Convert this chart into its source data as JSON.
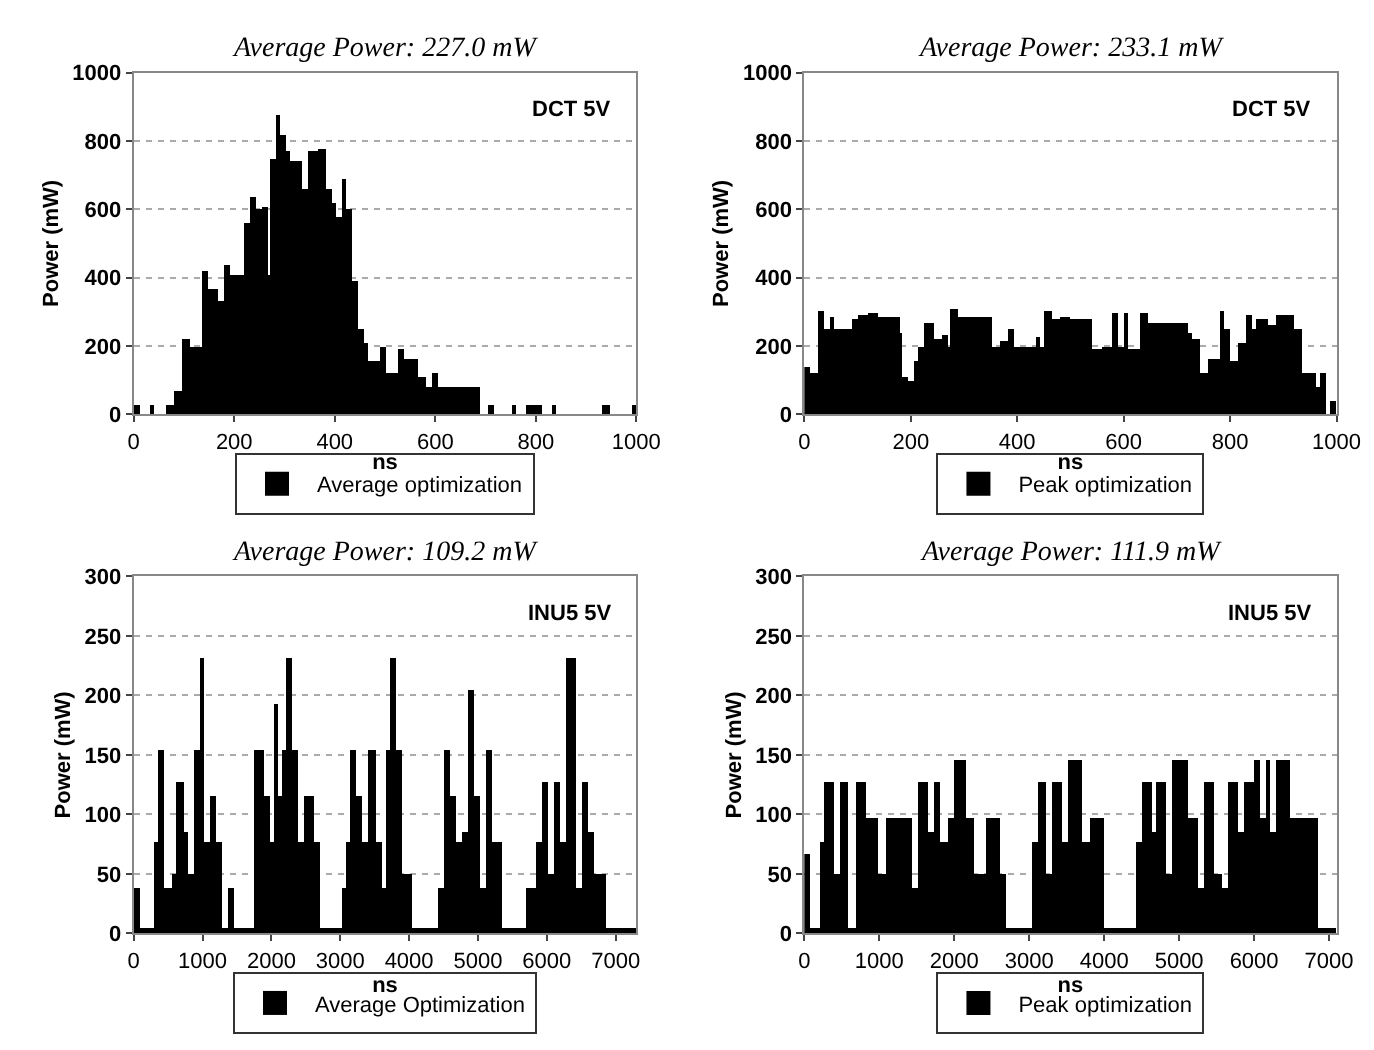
{
  "chart_data": [
    {
      "type": "histogram",
      "title": "Average Power: 227.0 mW",
      "xlabel": "ns",
      "ylabel": "Power (mW)",
      "annotations": [
        "DCT 5V"
      ],
      "xlim": [
        0,
        1000
      ],
      "ylim": [
        0,
        1000
      ],
      "xticks": [
        0,
        200,
        400,
        600,
        800,
        1000
      ],
      "yticks": [
        0,
        200,
        400,
        600,
        800,
        1000
      ],
      "grid": "y",
      "legend": "bottom",
      "bins": [
        0,
        10,
        30,
        40,
        65,
        80,
        97,
        110,
        136,
        147,
        167,
        179,
        189,
        220,
        230,
        242,
        255,
        265,
        272,
        282,
        291,
        302,
        312,
        335,
        348,
        365,
        381,
        394,
        401,
        414,
        423,
        434,
        444,
        458,
        467,
        489,
        500,
        524,
        536,
        563,
        579,
        593,
        606,
        688,
        705,
        718,
        751,
        760,
        778,
        791,
        810,
        831,
        840,
        930,
        945,
        990,
        1000
      ],
      "series": [
        {
          "name": "Average optimization",
          "color": "#000000",
          "values": [
            30,
            0,
            30,
            0,
            30,
            70,
            220,
            200,
            420,
            370,
            330,
            440,
            410,
            560,
            640,
            600,
            610,
            410,
            750,
            880,
            820,
            770,
            740,
            660,
            770,
            780,
            660,
            620,
            580,
            690,
            600,
            390,
            250,
            210,
            160,
            200,
            120,
            190,
            165,
            110,
            80,
            120,
            80,
            0,
            30,
            0,
            30,
            0,
            30,
            30,
            0,
            30,
            0,
            30,
            0,
            30
          ]
        }
      ]
    },
    {
      "type": "histogram",
      "title": "Average Power: 233.1 mW",
      "xlabel": "ns",
      "ylabel": "Power (mW)",
      "annotations": [
        "DCT 5V"
      ],
      "xlim": [
        0,
        1000
      ],
      "ylim": [
        0,
        1000
      ],
      "xticks": [
        0,
        200,
        400,
        600,
        800,
        1000
      ],
      "yticks": [
        0,
        200,
        400,
        600,
        800,
        1000
      ],
      "grid": "y",
      "legend": "bottom",
      "bins": [
        0,
        12,
        25,
        38,
        50,
        58,
        90,
        100,
        120,
        140,
        180,
        185,
        195,
        210,
        215,
        225,
        245,
        260,
        270,
        275,
        290,
        355,
        370,
        385,
        395,
        435,
        445,
        450,
        465,
        480,
        500,
        540,
        560,
        580,
        590,
        600,
        610,
        630,
        645,
        720,
        730,
        745,
        760,
        780,
        790,
        800,
        815,
        830,
        840,
        850,
        870,
        885,
        920,
        936,
        962,
        970,
        980,
        990,
        1000
      ],
      "series": [
        {
          "name": "Peak optimization",
          "color": "#000000",
          "values": [
            140,
            120,
            305,
            250,
            285,
            250,
            280,
            290,
            295,
            285,
            240,
            110,
            100,
            160,
            200,
            270,
            220,
            235,
            200,
            310,
            285,
            200,
            215,
            250,
            200,
            230,
            200,
            305,
            280,
            285,
            280,
            195,
            200,
            300,
            200,
            300,
            190,
            300,
            270,
            240,
            220,
            120,
            165,
            305,
            250,
            160,
            210,
            290,
            250,
            280,
            260,
            290,
            250,
            120,
            80,
            120,
            0,
            40
          ]
        }
      ]
    },
    {
      "type": "histogram",
      "title": "Average Power: 109.2 mW",
      "xlabel": "ns",
      "ylabel": "Power (mW)",
      "annotations": [
        "INU5 5V"
      ],
      "xlim": [
        0,
        7300
      ],
      "ylim": [
        0,
        300
      ],
      "xticks": [
        0,
        1000,
        2000,
        3000,
        4000,
        5000,
        6000,
        7000
      ],
      "yticks": [
        0,
        50,
        100,
        150,
        200,
        250,
        300
      ],
      "grid": "y",
      "legend": "bottom",
      "bins": [
        0,
        90,
        296,
        359,
        449,
        539,
        601,
        718,
        781,
        871,
        960,
        1014,
        1104,
        1194,
        1284,
        1391,
        1440,
        1750,
        1885,
        1975,
        2038,
        2092,
        2154,
        2199,
        2289,
        2379,
        2469,
        2603,
        2693,
        3007,
        3097,
        3141,
        3231,
        3321,
        3411,
        3501,
        3591,
        3680,
        3725,
        3815,
        3905,
        4040,
        4443,
        4488,
        4578,
        4668,
        4758,
        4847,
        4937,
        5027,
        5117,
        5206,
        5341,
        5700,
        5835,
        5925,
        6015,
        6104,
        6194,
        6284,
        6418,
        6508,
        6598,
        6688,
        6867,
        7300
      ],
      "series": [
        {
          "name": "Average Optimization",
          "color": "#000000",
          "values": [
            38,
            5,
            77,
            154,
            38,
            50,
            127,
            85,
            50,
            154,
            231,
            77,
            115,
            77,
            5,
            38,
            5,
            154,
            115,
            77,
            192,
            115,
            154,
            231,
            154,
            77,
            115,
            77,
            5,
            38,
            77,
            154,
            115,
            77,
            154,
            77,
            38,
            154,
            231,
            154,
            50,
            5,
            38,
            154,
            115,
            77,
            85,
            204,
            115,
            38,
            154,
            77,
            5,
            38,
            77,
            127,
            50,
            127,
            77,
            231,
            38,
            127,
            85,
            50,
            5
          ]
        }
      ]
    },
    {
      "type": "histogram",
      "title": "Average Power: 111.9 mW",
      "xlabel": "ns",
      "ylabel": "Power (mW)",
      "annotations": [
        "INU5 5V"
      ],
      "xlim": [
        0,
        7100
      ],
      "ylim": [
        0,
        300
      ],
      "xticks": [
        0,
        1000,
        2000,
        3000,
        4000,
        5000,
        6000,
        7000
      ],
      "yticks": [
        0,
        50,
        100,
        150,
        200,
        250,
        300
      ],
      "grid": "y",
      "legend": "bottom",
      "bins": [
        0,
        87,
        217,
        278,
        391,
        478,
        591,
        696,
        826,
        1000,
        1087,
        1304,
        1435,
        1522,
        1652,
        1739,
        1826,
        1913,
        2000,
        2174,
        2261,
        2435,
        2609,
        2696,
        3000,
        3043,
        3130,
        3217,
        3304,
        3435,
        3522,
        3696,
        3826,
        4000,
        4348,
        4435,
        4522,
        4652,
        4696,
        4826,
        4913,
        5130,
        5261,
        5348,
        5478,
        5565,
        5652,
        5783,
        5870,
        6000,
        6087,
        6174,
        6217,
        6304,
        6478,
        6870,
        7100
      ],
      "series": [
        {
          "name": "Peak optimization",
          "color": "#000000",
          "values": [
            66,
            5,
            77,
            127,
            50,
            127,
            5,
            127,
            97,
            50,
            97,
            97,
            38,
            127,
            85,
            127,
            77,
            97,
            146,
            97,
            50,
            97,
            50,
            5,
            5,
            77,
            127,
            50,
            127,
            77,
            146,
            77,
            97,
            5,
            5,
            77,
            127,
            85,
            127,
            50,
            146,
            97,
            38,
            127,
            50,
            38,
            127,
            85,
            127,
            146,
            97,
            146,
            85,
            146,
            97,
            5
          ]
        }
      ]
    }
  ]
}
